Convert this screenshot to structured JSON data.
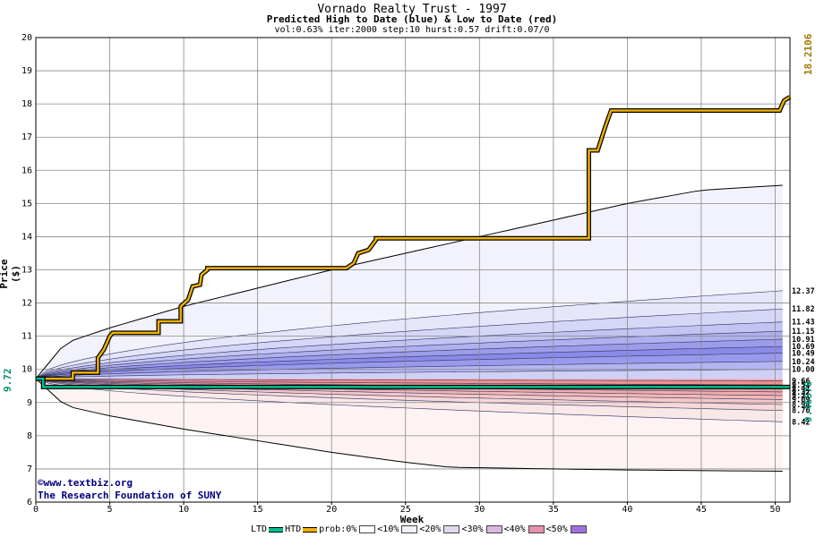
{
  "title": "Vornado Realty Trust - 1997",
  "subtitle": "Predicted High to Date (blue) &  Low to Date (red)",
  "params": "vol:0.63% iter:2000 step:10 hurst:0.57 drift:0.07/0",
  "credit": {
    "line1": "©www.textbiz.org",
    "line2": "The Research Foundation of SUNY"
  },
  "legend": {
    "ltd": "LTD",
    "htd": "HTD",
    "prob0": "prob:0%",
    "p10": "<10%",
    "p20": "<20%",
    "p30": "<30%",
    "p40": "<40%",
    "p50": "<50%"
  },
  "colors": {
    "ltd": "#00c090",
    "htd": "#f0b000",
    "blue_band": "#8a8af0",
    "red_band": "#f08080"
  },
  "chart_data": {
    "type": "line",
    "title": "Vornado Realty Trust - 1997",
    "xlabel": "Week",
    "ylabel": "Price ($)",
    "xlim": [
      0,
      51
    ],
    "ylim": [
      6,
      20
    ],
    "xticks": [
      0,
      5,
      10,
      15,
      20,
      25,
      30,
      35,
      40,
      45,
      50
    ],
    "yticks": [
      6,
      7,
      8,
      9,
      10,
      11,
      12,
      13,
      14,
      15,
      16,
      17,
      18,
      19,
      20
    ],
    "grid": true,
    "start_price": "9.72",
    "end_labels": {
      "max_htd": "18.2106",
      "current_ltd": "9.46578"
    },
    "right_labels_high": [
      "12.37",
      "11.82",
      "11.43",
      "11.15",
      "10.91",
      "10.69",
      "10.49",
      "10.24",
      "10.00"
    ],
    "right_labels_low": [
      "9.66",
      "9.53",
      "9.42",
      "9.32",
      "9.21",
      "9.09",
      "8.94",
      "8.76",
      "8.42"
    ],
    "band_high_values": [
      12.37,
      11.82,
      11.43,
      11.15,
      10.91,
      10.69,
      10.49,
      10.24,
      10.0
    ],
    "band_low_values": [
      9.66,
      9.53,
      9.42,
      9.32,
      9.21,
      9.09,
      8.94,
      8.76,
      8.42
    ],
    "envelope_upper": {
      "x": [
        0,
        2,
        5,
        10,
        15,
        20,
        25,
        30,
        35,
        40,
        45,
        50.5
      ],
      "y": [
        9.72,
        10.8,
        11.25,
        11.9,
        12.45,
        13.0,
        13.5,
        14.0,
        14.5,
        15.0,
        15.4,
        15.55
      ]
    },
    "envelope_lower": {
      "x": [
        0,
        2,
        5,
        10,
        15,
        20,
        25,
        28,
        35,
        40,
        45,
        50.5
      ],
      "y": [
        9.72,
        8.9,
        8.6,
        8.2,
        7.85,
        7.5,
        7.2,
        7.05,
        7.0,
        6.97,
        6.95,
        6.93
      ]
    },
    "series": [
      {
        "name": "HTD",
        "x": [
          0,
          2.5,
          2.5,
          4.2,
          4.2,
          4.6,
          5.0,
          5.2,
          8.3,
          8.3,
          9.8,
          9.8,
          10.3,
          10.6,
          11.1,
          11.2,
          11.6,
          11.6,
          21.0,
          21.5,
          21.8,
          22.5,
          23.0,
          23.0,
          37.4,
          37.4,
          38.0,
          38.5,
          38.9,
          50.3,
          50.6,
          51.0
        ],
        "y": [
          9.72,
          9.72,
          9.9,
          9.9,
          10.35,
          10.6,
          11.0,
          11.1,
          11.1,
          11.45,
          11.45,
          11.9,
          12.1,
          12.5,
          12.55,
          12.85,
          13.0,
          13.05,
          13.05,
          13.2,
          13.5,
          13.6,
          13.9,
          13.95,
          13.95,
          16.6,
          16.6,
          17.3,
          17.8,
          17.8,
          18.1,
          18.21
        ]
      },
      {
        "name": "LTD",
        "x": [
          0,
          0.5,
          0.5,
          51.0
        ],
        "y": [
          9.72,
          9.72,
          9.47,
          9.47
        ]
      }
    ]
  }
}
